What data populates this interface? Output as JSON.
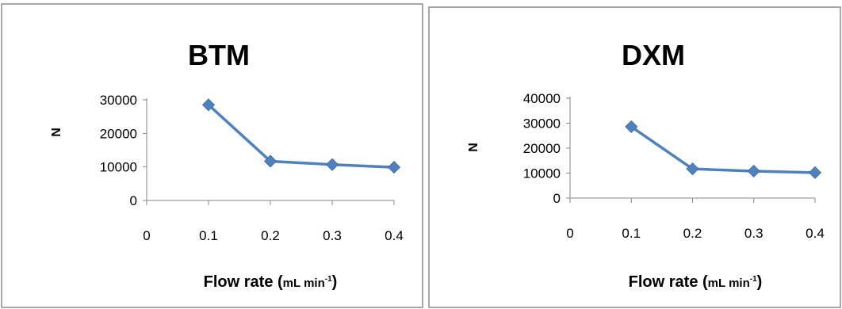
{
  "chart_data": [
    {
      "type": "line",
      "title": "BTM",
      "ylabel": "N",
      "xlabel_main": "Flow rate (",
      "xlabel_unit": "mL min",
      "xlabel_sup": "-1",
      "xlabel_close": ")",
      "xticks": [
        "0",
        "0.1",
        "0.2",
        "0.3",
        "0.4"
      ],
      "yticks": [
        "0",
        "10000",
        "20000",
        "30000"
      ],
      "xlim": [
        0,
        0.4
      ],
      "ylim": [
        0,
        30000
      ],
      "series": [
        {
          "x": [
            0.1,
            0.2,
            0.3,
            0.4
          ],
          "values": [
            28500,
            11700,
            10700,
            9900
          ]
        }
      ],
      "color": "#4f81bd",
      "grid": false,
      "legend": "none"
    },
    {
      "type": "line",
      "title": "DXM",
      "ylabel": "N",
      "xlabel_main": "Flow rate (",
      "xlabel_unit": "mL min",
      "xlabel_sup": "-1",
      "xlabel_close": ")",
      "xticks": [
        "0",
        "0.1",
        "0.2",
        "0.3",
        "0.4"
      ],
      "yticks": [
        "0",
        "10000",
        "20000",
        "30000",
        "40000"
      ],
      "xlim": [
        0,
        0.4
      ],
      "ylim": [
        0,
        40000
      ],
      "series": [
        {
          "x": [
            0.1,
            0.2,
            0.3,
            0.4
          ],
          "values": [
            28600,
            11700,
            10800,
            10200
          ]
        }
      ],
      "color": "#4f81bd",
      "grid": false,
      "legend": "none"
    }
  ]
}
